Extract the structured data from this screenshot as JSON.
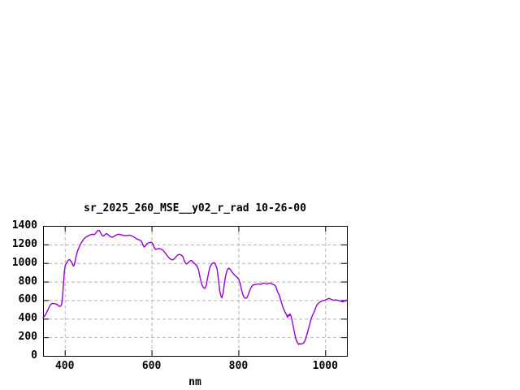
{
  "chart_data": {
    "type": "line",
    "title": "sr_2025_260_MSE__y02_r_rad 10-26-00",
    "xlabel": "nm",
    "ylabel": "",
    "xlim": [
      350,
      1050
    ],
    "ylim": [
      0,
      1400
    ],
    "x_ticks": [
      400,
      600,
      800,
      1000
    ],
    "y_ticks": [
      0,
      200,
      400,
      600,
      800,
      1000,
      1200,
      1400
    ],
    "grid": true,
    "legend": "none",
    "colors": {
      "line": "#9400d3",
      "grid": "#b4b4b4",
      "border": "#000000",
      "background": "#ffffff",
      "text": "#000000"
    },
    "series": [
      {
        "name": "sr_2025_260_MSE__y02_r_rad",
        "x": [
          350,
          353,
          356,
          360,
          364,
          368,
          372,
          376,
          380,
          384,
          388,
          391,
          393,
          395,
          397,
          399,
          401,
          403,
          406,
          409,
          411,
          414,
          417,
          419,
          421,
          423,
          426,
          430,
          434,
          438,
          442,
          446,
          450,
          454,
          458,
          462,
          465,
          468,
          471,
          474,
          477,
          480,
          483,
          486,
          489,
          492,
          495,
          498,
          501,
          505,
          509,
          513,
          517,
          521,
          525,
          529,
          533,
          537,
          541,
          545,
          549,
          553,
          557,
          561,
          565,
          569,
          573,
          577,
          580,
          583,
          586,
          589,
          592,
          596,
          600,
          603,
          606,
          609,
          612,
          616,
          620,
          624,
          628,
          632,
          636,
          640,
          644,
          648,
          652,
          656,
          660,
          664,
          668,
          672,
          675,
          678,
          681,
          684,
          688,
          692,
          696,
          700,
          704,
          708,
          712,
          716,
          720,
          723,
          726,
          730,
          734,
          738,
          742,
          745,
          748,
          751,
          754,
          757,
          760,
          762,
          765,
          768,
          771,
          774,
          777,
          780,
          783,
          786,
          790,
          794,
          798,
          801,
          804,
          807,
          810,
          813,
          816,
          819,
          822,
          825,
          828,
          831,
          834,
          838,
          842,
          846,
          850,
          854,
          858,
          862,
          866,
          870,
          874,
          878,
          882,
          886,
          890,
          894,
          898,
          902,
          905,
          908,
          911,
          913,
          915,
          917,
          919,
          921,
          924,
          927,
          930,
          933,
          936,
          939,
          941,
          944,
          947,
          950,
          953,
          956,
          959,
          962,
          965,
          968,
          971,
          974,
          977,
          980,
          983,
          986,
          989,
          992,
          996,
          1000,
          1004,
          1007,
          1010,
          1013,
          1016,
          1019,
          1022,
          1026,
          1030,
          1034,
          1038,
          1041,
          1044,
          1046,
          1048,
          1050
        ],
        "y": [
          410,
          426,
          446,
          482,
          526,
          556,
          566,
          562,
          559,
          547,
          532,
          538,
          560,
          645,
          770,
          905,
          968,
          995,
          1015,
          1033,
          1038,
          1020,
          995,
          973,
          968,
          1000,
          1070,
          1135,
          1180,
          1215,
          1248,
          1270,
          1283,
          1293,
          1302,
          1308,
          1310,
          1305,
          1318,
          1340,
          1353,
          1348,
          1322,
          1296,
          1291,
          1301,
          1316,
          1312,
          1300,
          1284,
          1277,
          1286,
          1298,
          1306,
          1310,
          1305,
          1300,
          1297,
          1294,
          1298,
          1300,
          1295,
          1286,
          1276,
          1261,
          1254,
          1246,
          1232,
          1195,
          1172,
          1186,
          1206,
          1216,
          1221,
          1222,
          1206,
          1166,
          1146,
          1151,
          1156,
          1152,
          1145,
          1129,
          1104,
          1079,
          1057,
          1040,
          1033,
          1043,
          1066,
          1086,
          1093,
          1087,
          1070,
          1030,
          1000,
          990,
          1000,
          1021,
          1028,
          1006,
          990,
          973,
          928,
          838,
          764,
          733,
          727,
          762,
          862,
          951,
          986,
          1001,
          1004,
          973,
          938,
          818,
          698,
          641,
          626,
          682,
          792,
          871,
          921,
          943,
          938,
          921,
          899,
          876,
          859,
          841,
          821,
          782,
          712,
          662,
          633,
          621,
          623,
          649,
          691,
          726,
          749,
          763,
          769,
          771,
          775,
          771,
          774,
          785,
          779,
          774,
          781,
          784,
          773,
          766,
          749,
          692,
          656,
          592,
          532,
          497,
          466,
          442,
          415,
          444,
          430,
          452,
          432,
          372,
          302,
          232,
          172,
          142,
          123,
          133,
          127,
          131,
          139,
          159,
          201,
          251,
          301,
          356,
          406,
          441,
          466,
          506,
          541,
          561,
          573,
          584,
          591,
          596,
          601,
          609,
          617,
          618,
          611,
          604,
          600,
          601,
          602,
          597,
          592,
          585,
          581,
          597,
          589,
          601,
          595
        ]
      }
    ]
  }
}
